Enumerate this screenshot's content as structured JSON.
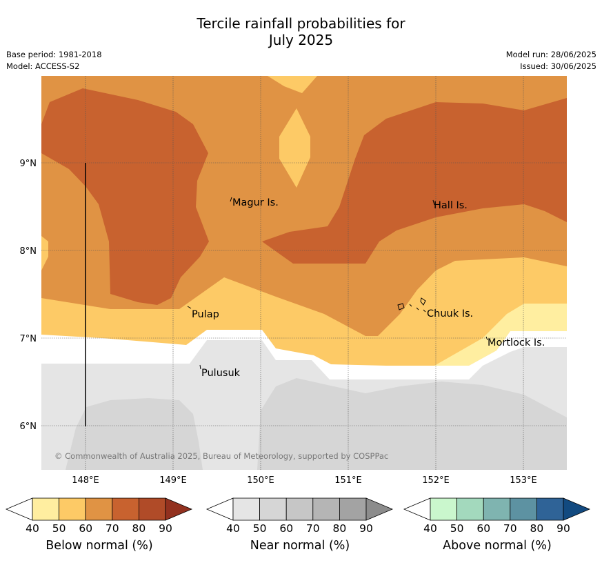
{
  "title": {
    "line1": "Tercile rainfall probabilities for",
    "line2": "July 2025"
  },
  "meta": {
    "base_period": "Base period: 1981-2018",
    "model": "Model: ACCESS-S2",
    "model_run": "Model run: 28/06/2025",
    "issued": "Issued: 30/06/2025"
  },
  "map": {
    "lon_ticks": [
      "148°E",
      "149°E",
      "150°E",
      "151°E",
      "152°E",
      "153°E"
    ],
    "lat_ticks": [
      "9°N",
      "8°N",
      "7°N",
      "6°N"
    ],
    "places": [
      "Magur Is.",
      "Hall Is.",
      "Pulap",
      "Chuuk Is.",
      "Mortlock Is.",
      "Pulusuk"
    ],
    "copyright": "© Commonwealth of Australia 2025, Bureau of Meteorology, supported by COSPPac"
  },
  "colorbars": {
    "ticks": [
      "40",
      "50",
      "60",
      "70",
      "80",
      "90"
    ],
    "below": {
      "label": "Below normal (%)",
      "colors": [
        "#ffeea0",
        "#fdca66",
        "#e09344",
        "#c8622f",
        "#b04b28",
        "#92311f"
      ]
    },
    "near": {
      "label": "Near normal (%)",
      "colors": [
        "#e5e5e5",
        "#d6d6d6",
        "#c6c6c6",
        "#b5b5b5",
        "#a3a3a3",
        "#8c8c8c"
      ]
    },
    "above": {
      "label": "Above normal (%)",
      "colors": [
        "#caf7cd",
        "#a3d9bd",
        "#7fb4b0",
        "#5d92a2",
        "#2f6397",
        "#124a80"
      ]
    }
  },
  "colors": {
    "below_50_60": "#fdca66",
    "below_60_70": "#e09344",
    "below_70_80": "#c8622f",
    "below_40_50": "#ffeea0",
    "near_40_50": "#e5e5e5",
    "near_50_60": "#d6d6d6"
  }
}
